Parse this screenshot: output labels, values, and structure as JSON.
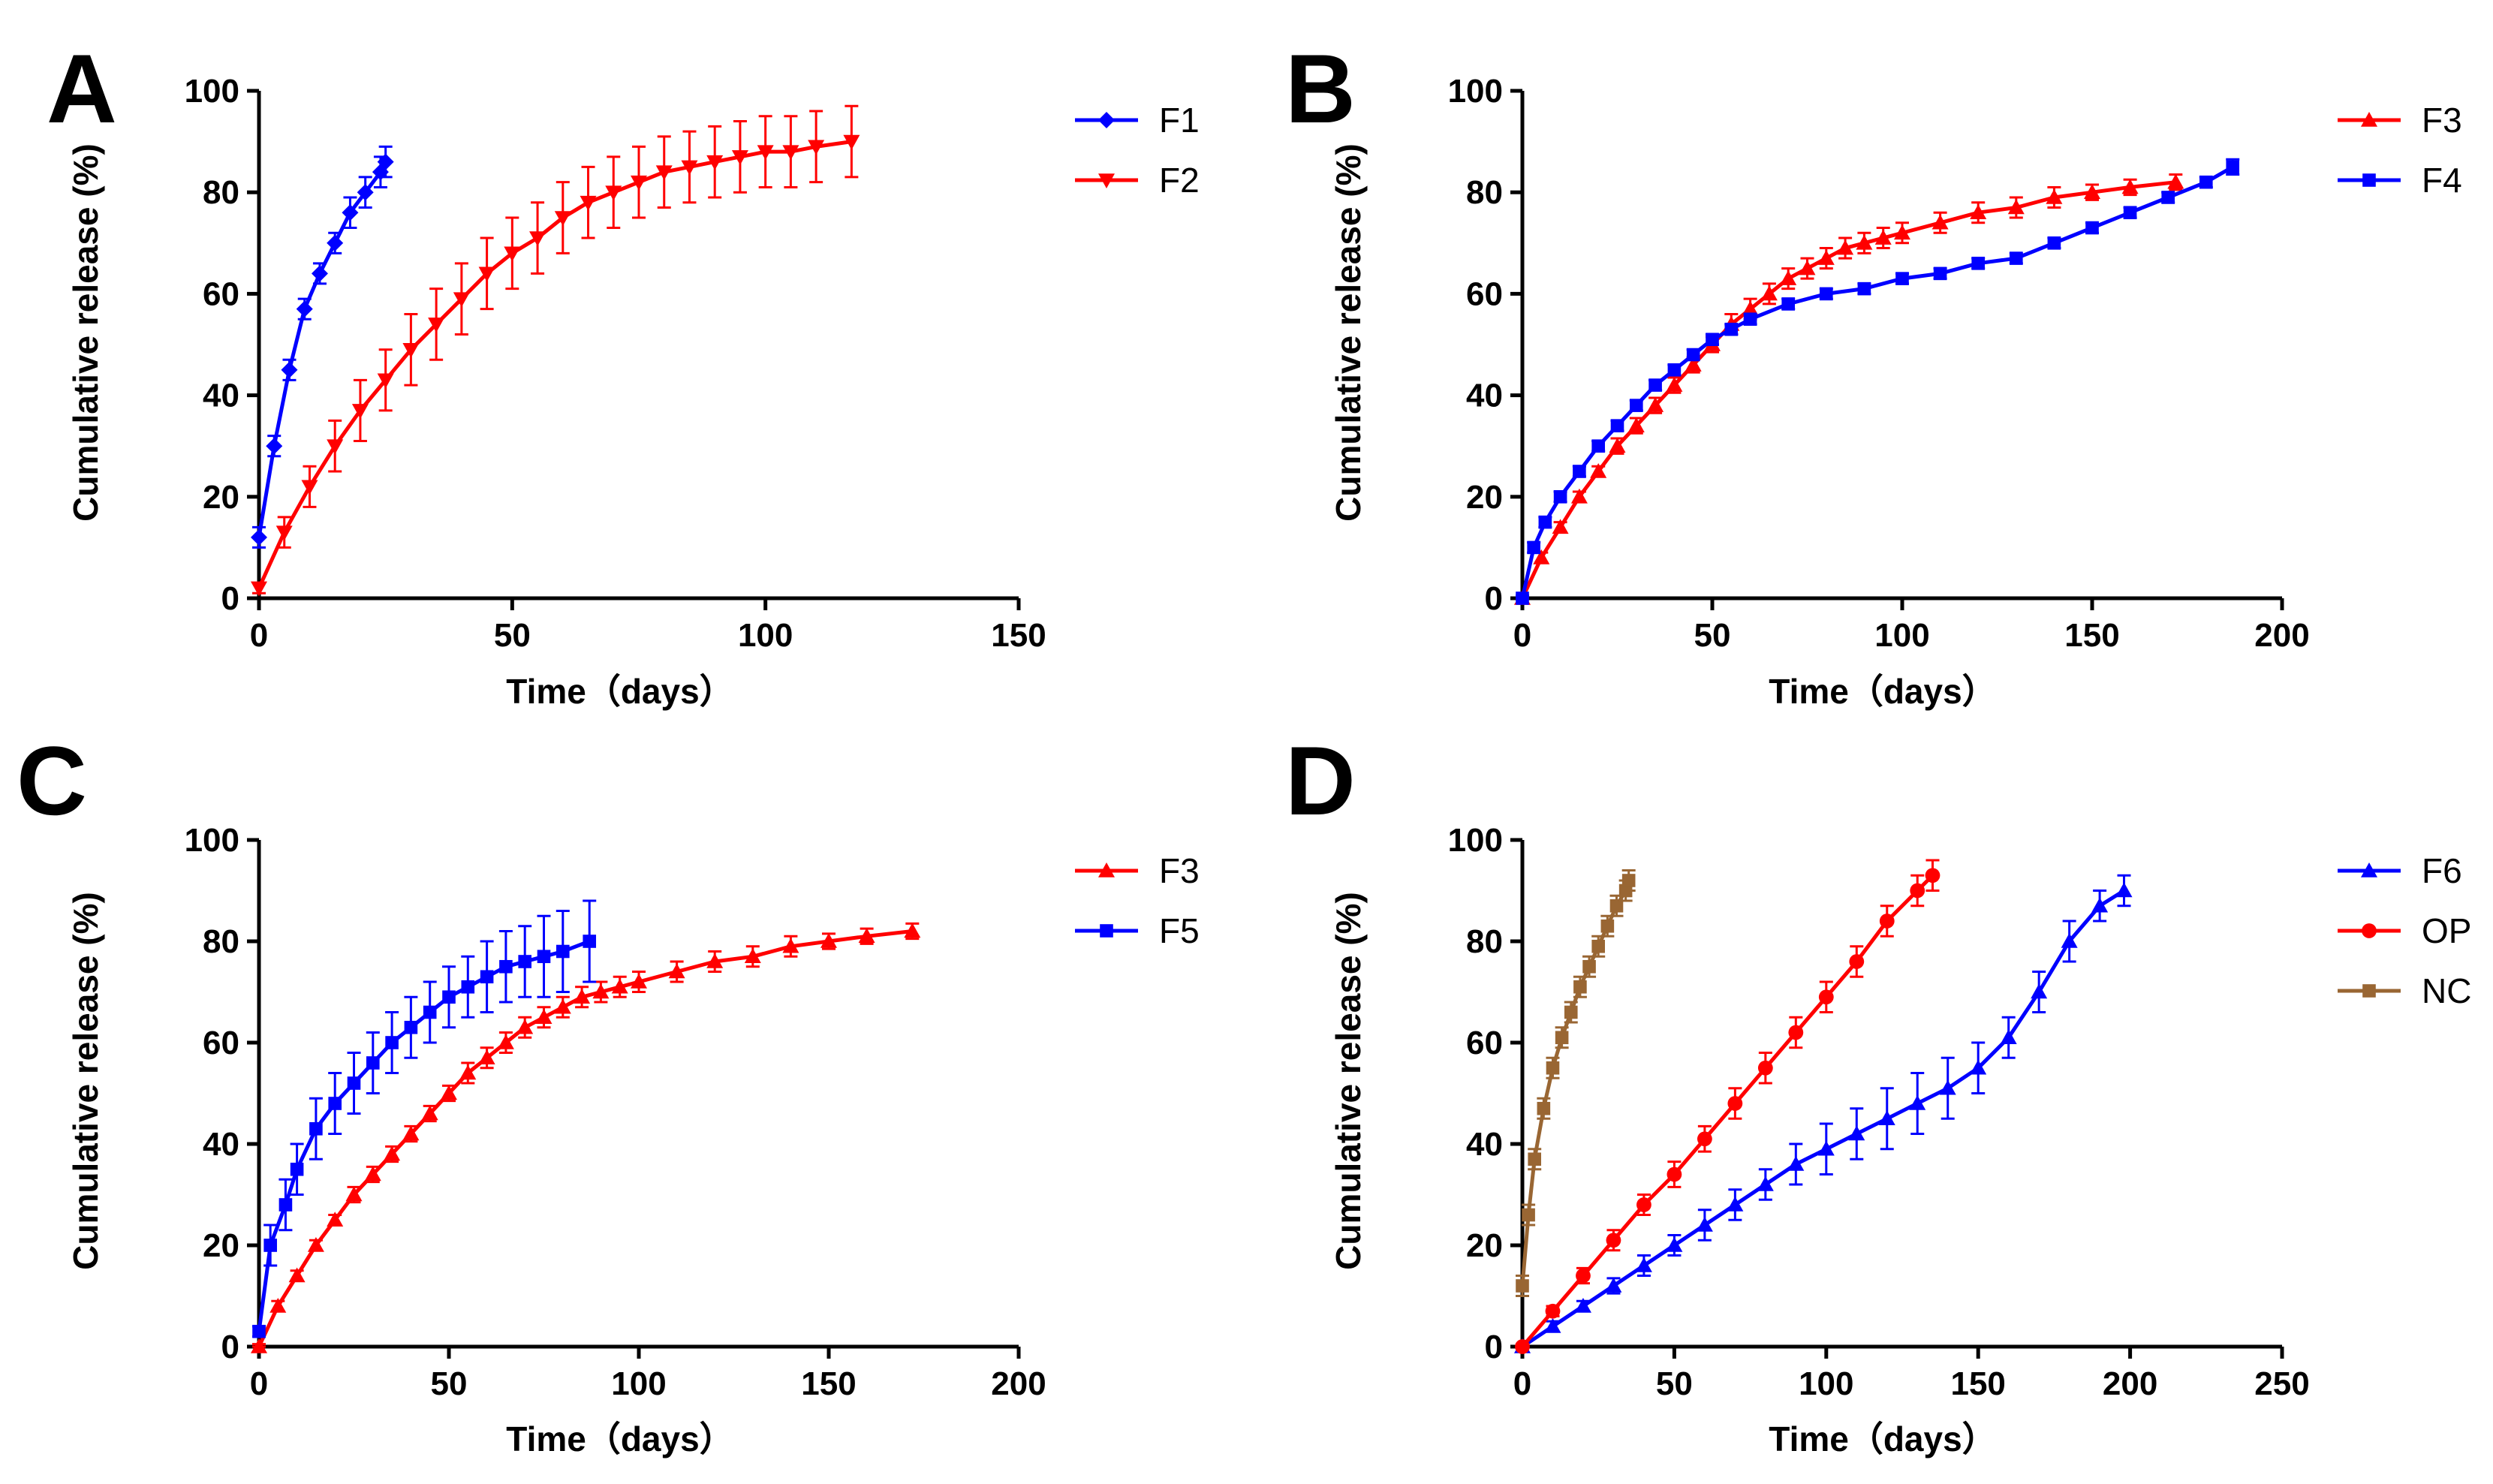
{
  "chart_data": [
    {
      "panel": "A",
      "type": "line",
      "xlabel": "Time（days）",
      "ylabel": "Cumulative release (%)",
      "xlim": [
        0,
        150
      ],
      "xticks": [
        0,
        50,
        100,
        150
      ],
      "ylim": [
        0,
        100
      ],
      "yticks": [
        0,
        20,
        40,
        60,
        80,
        100
      ],
      "legend_position": "top-right",
      "series": [
        {
          "name": "F1",
          "color": "#0000ff",
          "marker": "diamond",
          "x": [
            0,
            3,
            6,
            9,
            12,
            15,
            18,
            21,
            24,
            25
          ],
          "y": [
            12,
            30,
            45,
            57,
            64,
            70,
            76,
            80,
            84,
            86
          ],
          "err": [
            2,
            2,
            2,
            2,
            2,
            2,
            3,
            3,
            3,
            3
          ]
        },
        {
          "name": "F2",
          "color": "#ff0000",
          "marker": "triangle-down",
          "x": [
            0,
            5,
            10,
            15,
            20,
            25,
            30,
            35,
            40,
            45,
            50,
            55,
            60,
            65,
            70,
            75,
            80,
            85,
            90,
            95,
            100,
            105,
            110,
            117
          ],
          "y": [
            2,
            13,
            22,
            30,
            37,
            43,
            49,
            54,
            59,
            64,
            68,
            71,
            75,
            78,
            80,
            82,
            84,
            85,
            86,
            87,
            88,
            88,
            89,
            90
          ],
          "err": [
            1,
            3,
            4,
            5,
            6,
            6,
            7,
            7,
            7,
            7,
            7,
            7,
            7,
            7,
            7,
            7,
            7,
            7,
            7,
            7,
            7,
            7,
            7,
            7
          ]
        }
      ]
    },
    {
      "panel": "B",
      "type": "line",
      "xlabel": "Time（days）",
      "ylabel": "Cumulative release (%)",
      "xlim": [
        0,
        200
      ],
      "xticks": [
        0,
        50,
        100,
        150,
        200
      ],
      "ylim": [
        0,
        100
      ],
      "yticks": [
        0,
        20,
        40,
        60,
        80,
        100
      ],
      "legend_position": "top-right",
      "series": [
        {
          "name": "F3",
          "color": "#ff0000",
          "marker": "triangle-up",
          "x": [
            0,
            5,
            10,
            15,
            20,
            25,
            30,
            35,
            40,
            45,
            50,
            55,
            60,
            65,
            70,
            75,
            80,
            85,
            90,
            95,
            100,
            110,
            120,
            130,
            140,
            150,
            160,
            172
          ],
          "y": [
            0,
            8,
            14,
            20,
            25,
            30,
            34,
            38,
            42,
            46,
            50,
            54,
            57,
            60,
            63,
            65,
            67,
            69,
            70,
            71,
            72,
            74,
            76,
            77,
            79,
            80,
            81,
            82
          ],
          "err": [
            0.5,
            1,
            1,
            1,
            1,
            1.5,
            1.5,
            1.5,
            1.5,
            1.5,
            1.5,
            2,
            2,
            2,
            2,
            2,
            2,
            2,
            2,
            2,
            2,
            2,
            2,
            2,
            2,
            1.5,
            1.5,
            1.5
          ]
        },
        {
          "name": "F4",
          "color": "#0000ff",
          "marker": "square",
          "x": [
            0,
            3,
            6,
            10,
            15,
            20,
            25,
            30,
            35,
            40,
            45,
            50,
            55,
            60,
            70,
            80,
            90,
            100,
            110,
            120,
            130,
            140,
            150,
            160,
            170,
            180,
            187
          ],
          "y": [
            0,
            10,
            15,
            20,
            25,
            30,
            34,
            38,
            42,
            45,
            48,
            51,
            53,
            55,
            58,
            60,
            61,
            63,
            64,
            66,
            67,
            70,
            73,
            76,
            79,
            82,
            85
          ],
          "err": [
            0.5,
            1,
            1,
            1,
            1,
            1,
            1,
            1,
            1,
            1,
            1,
            1,
            1,
            1,
            1,
            1,
            1,
            1,
            1,
            1,
            1,
            1,
            1,
            1,
            1,
            1,
            1.5
          ]
        }
      ]
    },
    {
      "panel": "C",
      "type": "line",
      "xlabel": "Time（days）",
      "ylabel": "Cumulative release (%)",
      "xlim": [
        0,
        200
      ],
      "xticks": [
        0,
        50,
        100,
        150,
        200
      ],
      "ylim": [
        0,
        100
      ],
      "yticks": [
        0,
        20,
        40,
        60,
        80,
        100
      ],
      "legend_position": "top-right",
      "series": [
        {
          "name": "F3",
          "color": "#ff0000",
          "marker": "triangle-up",
          "x": [
            0,
            5,
            10,
            15,
            20,
            25,
            30,
            35,
            40,
            45,
            50,
            55,
            60,
            65,
            70,
            75,
            80,
            85,
            90,
            95,
            100,
            110,
            120,
            130,
            140,
            150,
            160,
            172
          ],
          "y": [
            0,
            8,
            14,
            20,
            25,
            30,
            34,
            38,
            42,
            46,
            50,
            54,
            57,
            60,
            63,
            65,
            67,
            69,
            70,
            71,
            72,
            74,
            76,
            77,
            79,
            80,
            81,
            82
          ],
          "err": [
            0.5,
            1,
            1,
            1,
            1,
            1.5,
            1.5,
            1.5,
            1.5,
            1.5,
            1.5,
            2,
            2,
            2,
            2,
            2,
            2,
            2,
            2,
            2,
            2,
            2,
            2,
            2,
            2,
            1.5,
            1.5,
            1.5
          ]
        },
        {
          "name": "F5",
          "color": "#0000ff",
          "marker": "square",
          "x": [
            0,
            3,
            7,
            10,
            15,
            20,
            25,
            30,
            35,
            40,
            45,
            50,
            55,
            60,
            65,
            70,
            75,
            80,
            87
          ],
          "y": [
            3,
            20,
            28,
            35,
            43,
            48,
            52,
            56,
            60,
            63,
            66,
            69,
            71,
            73,
            75,
            76,
            77,
            78,
            80
          ],
          "err": [
            1,
            4,
            5,
            5,
            6,
            6,
            6,
            6,
            6,
            6,
            6,
            6,
            6,
            7,
            7,
            7,
            8,
            8,
            8
          ]
        }
      ]
    },
    {
      "panel": "D",
      "type": "line",
      "xlabel": "Time（days）",
      "ylabel": "Cumulative release (%)",
      "xlim": [
        0,
        250
      ],
      "xticks": [
        0,
        50,
        100,
        150,
        200,
        250
      ],
      "ylim": [
        0,
        100
      ],
      "yticks": [
        0,
        20,
        40,
        60,
        80,
        100
      ],
      "legend_position": "top-right",
      "series": [
        {
          "name": "F6",
          "color": "#0000ff",
          "marker": "triangle-up",
          "x": [
            0,
            10,
            20,
            30,
            40,
            50,
            60,
            70,
            80,
            90,
            100,
            110,
            120,
            130,
            140,
            150,
            160,
            170,
            180,
            190,
            198
          ],
          "y": [
            0,
            4,
            8,
            12,
            16,
            20,
            24,
            28,
            32,
            36,
            39,
            42,
            45,
            48,
            51,
            55,
            61,
            70,
            80,
            87,
            90
          ],
          "err": [
            0.5,
            1,
            1,
            1.5,
            2,
            2,
            3,
            3,
            3,
            4,
            5,
            5,
            6,
            6,
            6,
            5,
            4,
            4,
            4,
            3,
            3
          ]
        },
        {
          "name": "OP",
          "color": "#ff0000",
          "marker": "circle",
          "x": [
            0,
            10,
            20,
            30,
            40,
            50,
            60,
            70,
            80,
            90,
            100,
            110,
            120,
            130,
            135
          ],
          "y": [
            0,
            7,
            14,
            21,
            28,
            34,
            41,
            48,
            55,
            62,
            69,
            76,
            84,
            90,
            93
          ],
          "err": [
            0.5,
            1,
            1.5,
            2,
            2,
            2.5,
            2.5,
            3,
            3,
            3,
            3,
            3,
            3,
            3,
            3
          ]
        },
        {
          "name": "NC",
          "color": "#996633",
          "marker": "square",
          "x": [
            0,
            2,
            4,
            7,
            10,
            13,
            16,
            19,
            22,
            25,
            28,
            31,
            34,
            35
          ],
          "y": [
            12,
            26,
            37,
            47,
            55,
            61,
            66,
            71,
            75,
            79,
            83,
            87,
            90,
            92
          ],
          "err": [
            2,
            2,
            2,
            2,
            2,
            2,
            2,
            2,
            2,
            2,
            2,
            2,
            2,
            2
          ]
        }
      ]
    }
  ]
}
